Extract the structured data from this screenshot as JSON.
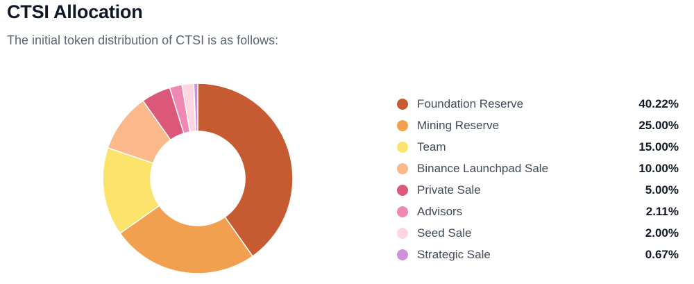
{
  "header": {
    "title": "CTSI Allocation",
    "subtitle": "The initial token distribution of CTSI is as follows:"
  },
  "chart_data": {
    "type": "pie",
    "donut": true,
    "categories": [
      "Foundation Reserve",
      "Mining Reserve",
      "Team",
      "Binance Launchpad Sale",
      "Private Sale",
      "Advisors",
      "Seed Sale",
      "Strategic Sale"
    ],
    "values": [
      40.22,
      25.0,
      15.0,
      10.0,
      5.0,
      2.11,
      2.0,
      0.67
    ],
    "value_labels": [
      "40.22%",
      "25.00%",
      "15.00%",
      "10.00%",
      "5.00%",
      "2.11%",
      "2.00%",
      "0.67%"
    ],
    "colors": [
      "#c65b31",
      "#f0a04e",
      "#fbe36c",
      "#fbb88a",
      "#dc587a",
      "#ef88b2",
      "#fdd6df",
      "#cd92dc"
    ],
    "legend_position": "right"
  }
}
